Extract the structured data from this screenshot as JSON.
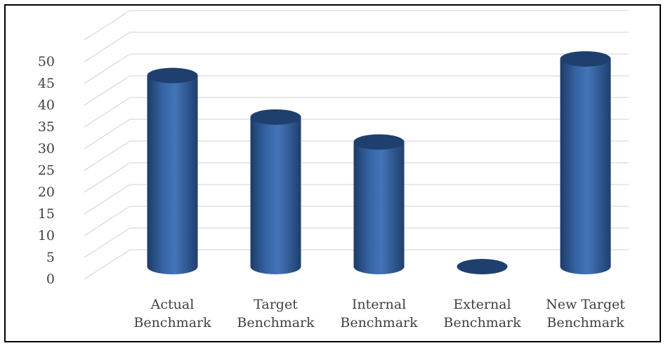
{
  "chart_data": {
    "type": "bar",
    "style": "3d-cylinder",
    "categories": [
      [
        "Actual",
        "Benchmark"
      ],
      [
        "Target",
        "Benchmark"
      ],
      [
        "Internal",
        "Benchmark"
      ],
      [
        "External",
        "Benchmark"
      ],
      [
        "New Target",
        "Benchmark"
      ]
    ],
    "series": [
      {
        "values": [
          46,
          36,
          30,
          0,
          50
        ]
      }
    ],
    "title": "",
    "xlabel": "",
    "ylabel": "",
    "ylim": [
      0,
      50
    ],
    "yticks": [
      "0",
      "5",
      "10",
      "15",
      "20",
      "25",
      "30",
      "35",
      "40",
      "45",
      "50"
    ],
    "grid": true,
    "legend": "none",
    "colors": {
      "bar_body": "#2e5c99",
      "bar_dark": "#1d3b66",
      "bar_light": "#4a7bc0",
      "bar_top": "#1f3f6e",
      "grid": "#d9d9d9"
    }
  }
}
